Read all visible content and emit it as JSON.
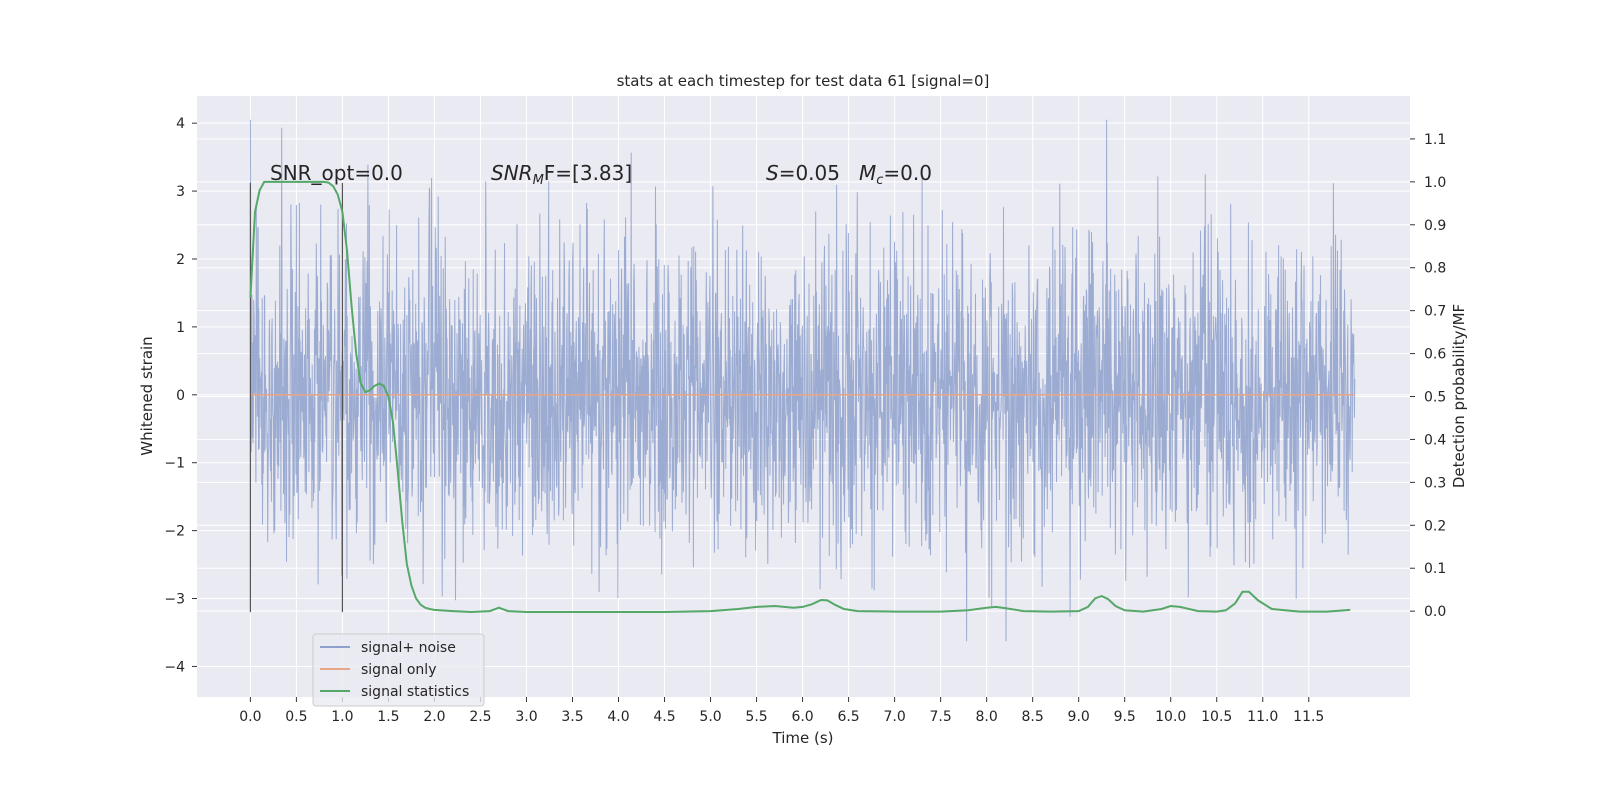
{
  "chart_data": {
    "type": "line",
    "title": "stats at each timestep for test data 61 [signal=0]",
    "xlabel": "Time (s)",
    "ylabel_left": "Whitened strain",
    "ylabel_right": "Detection probability/MF",
    "xlim": [
      -0.58,
      12.6
    ],
    "ylim_left": [
      -4.45,
      4.4
    ],
    "ylim_right": [
      -0.2,
      1.2
    ],
    "x_ticks": [
      0.0,
      0.5,
      1.0,
      1.5,
      2.0,
      2.5,
      3.0,
      3.5,
      4.0,
      4.5,
      5.0,
      5.5,
      6.0,
      6.5,
      7.0,
      7.5,
      8.0,
      8.5,
      9.0,
      9.5,
      10.0,
      10.5,
      11.0,
      11.5
    ],
    "x_tick_labels": [
      "0.0",
      "0.5",
      "1.0",
      "1.5",
      "2.0",
      "2.5",
      "3.0",
      "3.5",
      "4.0",
      "4.5",
      "5.0",
      "5.5",
      "6.0",
      "6.5",
      "7.0",
      "7.5",
      "8.0",
      "8.5",
      "9.0",
      "9.5",
      "10.0",
      "10.5",
      "11.0",
      "11.5"
    ],
    "y_left_ticks": [
      4,
      3,
      2,
      1,
      0,
      -1,
      -2,
      -3,
      -4
    ],
    "y_left_tick_labels": [
      "4",
      "3",
      "2",
      "1",
      "0",
      "−1",
      "−2",
      "−3",
      "−4"
    ],
    "y_right_ticks": [
      1.1,
      1.0,
      0.9,
      0.8,
      0.7,
      0.6,
      0.5,
      0.4,
      0.3,
      0.2,
      0.1,
      0.0
    ],
    "y_right_tick_labels": [
      "1.1",
      "1.0",
      "0.9",
      "0.8",
      "0.7",
      "0.6",
      "0.5",
      "0.4",
      "0.3",
      "0.2",
      "0.1",
      "0.0"
    ],
    "grid": true,
    "legend_position": "lower-left",
    "annotations": {
      "snr_opt": "SNR_opt=0.0",
      "snr_mf_prefix": "SNR",
      "snr_mf_sub": "M",
      "snr_mf_rest": "F=[3.83]",
      "s_italic": "S",
      "s_value": "=0.05",
      "mc_italic": "M",
      "mc_sub": "c",
      "mc_value": "=0.0"
    },
    "vlines_x": [
      0.0,
      1.0
    ],
    "vlines_ylim": [
      -3.2,
      3.12
    ],
    "series": [
      {
        "name": "signal+ noise",
        "color": "#8da0cb",
        "axis": "left",
        "x_range": [
          0.0,
          12.0
        ],
        "envelope": {
          "typical_min": -2.6,
          "typical_max": 2.6,
          "max": 4.05,
          "min": -4.05
        }
      },
      {
        "name": "signal only",
        "color": "#e8a687",
        "axis": "left",
        "x": [
          0.0,
          12.0
        ],
        "y": [
          0.0,
          0.0
        ]
      },
      {
        "name": "signal statistics",
        "color": "#55a868",
        "axis": "right",
        "x": [
          0.0,
          0.05,
          0.1,
          0.15,
          0.2,
          0.3,
          0.4,
          0.5,
          0.6,
          0.7,
          0.8,
          0.85,
          0.9,
          0.95,
          1.0,
          1.05,
          1.1,
          1.15,
          1.2,
          1.25,
          1.3,
          1.35,
          1.4,
          1.45,
          1.5,
          1.55,
          1.6,
          1.65,
          1.7,
          1.75,
          1.8,
          1.85,
          1.9,
          1.95,
          2.0,
          2.2,
          2.4,
          2.6,
          2.7,
          2.8,
          3.0,
          3.5,
          4.0,
          4.5,
          5.0,
          5.3,
          5.5,
          5.7,
          5.9,
          6.0,
          6.1,
          6.2,
          6.27,
          6.35,
          6.45,
          6.6,
          7.0,
          7.5,
          7.8,
          8.0,
          8.1,
          8.2,
          8.4,
          8.7,
          9.0,
          9.1,
          9.18,
          9.25,
          9.32,
          9.4,
          9.5,
          9.7,
          9.9,
          10.0,
          10.1,
          10.3,
          10.5,
          10.6,
          10.7,
          10.78,
          10.85,
          10.95,
          11.1,
          11.4,
          11.7,
          11.95
        ],
        "y": [
          0.73,
          0.93,
          0.98,
          1.0,
          1.0,
          1.0,
          1.0,
          1.0,
          1.0,
          1.0,
          1.0,
          0.998,
          0.99,
          0.97,
          0.93,
          0.84,
          0.71,
          0.6,
          0.53,
          0.51,
          0.515,
          0.525,
          0.53,
          0.525,
          0.5,
          0.44,
          0.33,
          0.21,
          0.11,
          0.06,
          0.03,
          0.015,
          0.008,
          0.005,
          0.003,
          0.0,
          -0.002,
          0.0,
          0.008,
          0.0,
          -0.002,
          -0.002,
          -0.002,
          -0.002,
          0.0,
          0.005,
          0.01,
          0.012,
          0.008,
          0.01,
          0.016,
          0.026,
          0.025,
          0.015,
          0.005,
          0.0,
          -0.001,
          -0.001,
          0.002,
          0.008,
          0.01,
          0.007,
          0.0,
          -0.001,
          0.0,
          0.01,
          0.03,
          0.035,
          0.028,
          0.012,
          0.002,
          -0.001,
          0.005,
          0.012,
          0.01,
          0.0,
          -0.001,
          0.002,
          0.018,
          0.045,
          0.045,
          0.025,
          0.005,
          -0.001,
          -0.001,
          0.003
        ]
      }
    ]
  }
}
